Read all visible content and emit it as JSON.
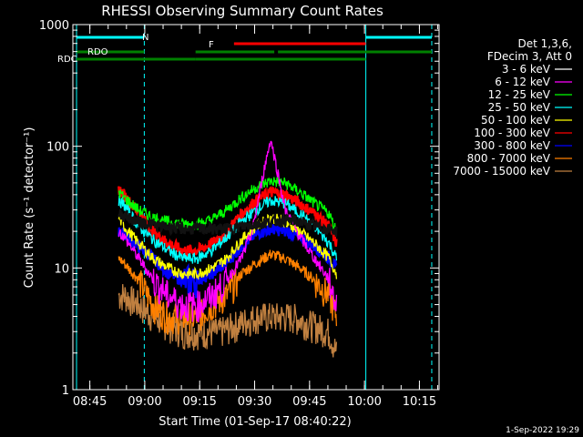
{
  "chart_data": {
    "type": "line",
    "title": "RHESSI Observing Summary Count Rates",
    "xlabel": "Start Time (01-Sep-17 08:40:22)",
    "ylabel": "Count Rate (s⁻¹ detector⁻¹)",
    "yscale": "log",
    "ylim": [
      1,
      1000
    ],
    "xlim_minutes_after_0840": [
      0,
      100
    ],
    "x_tick_labels": [
      "08:45",
      "09:00",
      "09:15",
      "09:30",
      "09:45",
      "10:00",
      "10:15"
    ],
    "y_tick_labels": [
      "1",
      "10",
      "100",
      "1000"
    ],
    "legend": {
      "placement": "right",
      "header": [
        "Det 1,3,6,",
        "FDecim 3, Att 0"
      ]
    },
    "series": [
      {
        "name": "3 - 6 keV",
        "color": "#000000",
        "points": [
          [
            12.5,
            28
          ],
          [
            14,
            27
          ],
          [
            18,
            24
          ],
          [
            24,
            22
          ],
          [
            30,
            21
          ],
          [
            36,
            21
          ],
          [
            42,
            21
          ],
          [
            46,
            22
          ],
          [
            50,
            23
          ],
          [
            54,
            24
          ],
          [
            58,
            25
          ],
          [
            62,
            24
          ],
          [
            66,
            22
          ],
          [
            70,
            21
          ],
          [
            72,
            20
          ]
        ]
      },
      {
        "name": "6 - 12 keV",
        "color": "#ff00ff",
        "points": [
          [
            12.5,
            20
          ],
          [
            14,
            18
          ],
          [
            18,
            12
          ],
          [
            22,
            8
          ],
          [
            26,
            6
          ],
          [
            30,
            5
          ],
          [
            34,
            5
          ],
          [
            38,
            6
          ],
          [
            42,
            8
          ],
          [
            46,
            12
          ],
          [
            49,
            20
          ],
          [
            52,
            60
          ],
          [
            54,
            115
          ],
          [
            56,
            60
          ],
          [
            58,
            30
          ],
          [
            62,
            18
          ],
          [
            66,
            12
          ],
          [
            70,
            8
          ],
          [
            72,
            5
          ]
        ]
      },
      {
        "name": "12 - 25 keV",
        "color": "#00ff00",
        "points": [
          [
            12.5,
            42
          ],
          [
            14,
            38
          ],
          [
            18,
            30
          ],
          [
            22,
            26
          ],
          [
            26,
            24
          ],
          [
            30,
            23
          ],
          [
            34,
            23
          ],
          [
            38,
            25
          ],
          [
            42,
            30
          ],
          [
            46,
            38
          ],
          [
            50,
            46
          ],
          [
            54,
            52
          ],
          [
            58,
            50
          ],
          [
            62,
            42
          ],
          [
            66,
            34
          ],
          [
            70,
            28
          ],
          [
            72,
            20
          ]
        ]
      },
      {
        "name": "25 - 50 keV",
        "color": "#00ffff",
        "points": [
          [
            12.5,
            36
          ],
          [
            14,
            33
          ],
          [
            18,
            22
          ],
          [
            22,
            17
          ],
          [
            26,
            14
          ],
          [
            30,
            12
          ],
          [
            34,
            12
          ],
          [
            38,
            14
          ],
          [
            42,
            18
          ],
          [
            46,
            24
          ],
          [
            50,
            30
          ],
          [
            54,
            36
          ],
          [
            58,
            34
          ],
          [
            62,
            28
          ],
          [
            66,
            22
          ],
          [
            70,
            16
          ],
          [
            72,
            12
          ]
        ]
      },
      {
        "name": "50 - 100 keV",
        "color": "#ffff00",
        "points": [
          [
            12.5,
            26
          ],
          [
            14,
            22
          ],
          [
            18,
            16
          ],
          [
            22,
            12
          ],
          [
            26,
            10
          ],
          [
            30,
            9
          ],
          [
            34,
            9
          ],
          [
            38,
            10
          ],
          [
            42,
            12
          ],
          [
            46,
            17
          ],
          [
            50,
            22
          ],
          [
            54,
            26
          ],
          [
            58,
            24
          ],
          [
            62,
            20
          ],
          [
            66,
            16
          ],
          [
            70,
            12
          ],
          [
            72,
            9
          ]
        ]
      },
      {
        "name": "100 - 300 keV",
        "color": "#ff0000",
        "points": [
          [
            12.5,
            45
          ],
          [
            14,
            40
          ],
          [
            18,
            28
          ],
          [
            22,
            20
          ],
          [
            26,
            16
          ],
          [
            30,
            14
          ],
          [
            34,
            14
          ],
          [
            38,
            16
          ],
          [
            42,
            20
          ],
          [
            46,
            28
          ],
          [
            50,
            36
          ],
          [
            54,
            42
          ],
          [
            58,
            40
          ],
          [
            62,
            34
          ],
          [
            66,
            28
          ],
          [
            70,
            22
          ],
          [
            72,
            16
          ]
        ]
      },
      {
        "name": "300 - 800 keV",
        "color": "#0000ff",
        "points": [
          [
            12.5,
            20
          ],
          [
            14,
            19
          ],
          [
            18,
            15
          ],
          [
            22,
            12
          ],
          [
            26,
            9
          ],
          [
            30,
            8
          ],
          [
            34,
            8
          ],
          [
            38,
            9
          ],
          [
            42,
            11
          ],
          [
            46,
            15
          ],
          [
            50,
            19
          ],
          [
            54,
            21
          ],
          [
            58,
            20
          ],
          [
            62,
            18
          ],
          [
            66,
            15
          ],
          [
            70,
            12
          ],
          [
            72,
            10
          ]
        ]
      },
      {
        "name": "800 - 7000 keV",
        "color": "#ff8000",
        "points": [
          [
            12.5,
            12
          ],
          [
            14,
            11
          ],
          [
            18,
            8
          ],
          [
            22,
            5
          ],
          [
            26,
            4
          ],
          [
            30,
            4
          ],
          [
            34,
            4
          ],
          [
            38,
            5
          ],
          [
            42,
            6
          ],
          [
            46,
            9
          ],
          [
            50,
            11
          ],
          [
            54,
            13
          ],
          [
            58,
            12
          ],
          [
            62,
            10
          ],
          [
            66,
            8
          ],
          [
            70,
            6
          ],
          [
            72,
            4
          ]
        ]
      },
      {
        "name": "7000 - 15000 keV",
        "color": "#c08040",
        "points": [
          [
            12.5,
            6
          ],
          [
            14,
            6
          ],
          [
            18,
            5
          ],
          [
            22,
            4
          ],
          [
            30,
            3
          ],
          [
            40,
            3
          ],
          [
            50,
            4
          ],
          [
            60,
            4
          ],
          [
            70,
            3
          ],
          [
            72,
            2
          ]
        ]
      }
    ],
    "flag_bars": [
      {
        "label": "N",
        "color": "#00ffff",
        "segments": [
          [
            1,
            19.5
          ],
          [
            80,
            98
          ]
        ]
      },
      {
        "label": "F",
        "color": "#ff0000",
        "segments": [
          [
            44,
            80
          ]
        ]
      },
      {
        "label": "RDO",
        "color": "#008000",
        "segments": [
          [
            1,
            19.5
          ],
          [
            33.5,
            55
          ],
          [
            56,
            80
          ],
          [
            80,
            98
          ]
        ]
      },
      {
        "label": "RDC",
        "color": "#008000",
        "segments": [
          [
            1,
            33.5
          ],
          [
            33.5,
            80
          ]
        ]
      }
    ],
    "vertical_lines": [
      {
        "x": 1,
        "color": "#00ffff",
        "style": "solid"
      },
      {
        "x": 19.5,
        "color": "#00ffff",
        "style": "dashed"
      },
      {
        "x": 80,
        "color": "#00ffff",
        "style": "solid"
      },
      {
        "x": 98,
        "color": "#00ffff",
        "style": "dashed"
      }
    ],
    "footer": "1-Sep-2022 19:29"
  }
}
